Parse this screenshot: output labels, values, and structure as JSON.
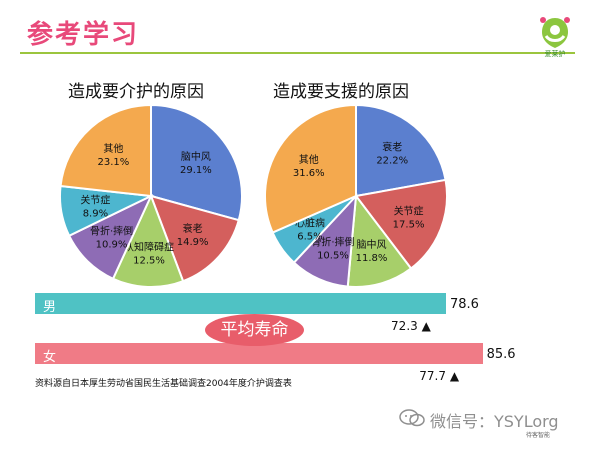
{
  "page": {
    "title": "参考学习",
    "source": "资料源自日本厚生劳动省国民生活基础调查2004年度介护调查表",
    "watermark": "微信号：YSYLorg",
    "small_note": "待客智能"
  },
  "logo": {
    "text": "爱莱护"
  },
  "chart_data": [
    {
      "type": "pie",
      "title": "造成要介护的原因",
      "slices": [
        {
          "label": "脑中风",
          "value": 29.1,
          "display": "29.1%",
          "color": "#5b7fcf"
        },
        {
          "label": "衰老",
          "value": 14.9,
          "display": "14.9%",
          "color": "#d45f5d"
        },
        {
          "label": "认知障碍症",
          "value": 12.5,
          "display": "12.5%",
          "color": "#a7cf6a"
        },
        {
          "label": "骨折·摔倒",
          "value": 10.9,
          "display": "10.9%",
          "color": "#8e6cb5"
        },
        {
          "label": "关节症",
          "value": 8.9,
          "display": "8.9%",
          "color": "#4db6cf"
        },
        {
          "label": "其他",
          "value": 23.1,
          "display": "23.1%",
          "color": "#f4a94e"
        }
      ]
    },
    {
      "type": "pie",
      "title": "造成要支援的原因",
      "slices": [
        {
          "label": "衰老",
          "value": 22.2,
          "display": "22.2%",
          "color": "#5b7fcf"
        },
        {
          "label": "关节症",
          "value": 17.5,
          "display": "17.5%",
          "color": "#d45f5d"
        },
        {
          "label": "脑中风",
          "value": 11.8,
          "display": "11.8%",
          "color": "#a7cf6a"
        },
        {
          "label": "骨折·摔倒",
          "value": 10.5,
          "display": "10.5%",
          "color": "#8e6cb5"
        },
        {
          "label": "心脏病",
          "value": 6.5,
          "display": "6.5%",
          "color": "#4db6cf"
        },
        {
          "label": "其他",
          "value": 31.6,
          "display": "31.6%",
          "color": "#f4a94e"
        }
      ]
    },
    {
      "type": "bar",
      "title": "平均寿命",
      "categories": [
        "男",
        "女"
      ],
      "values": [
        78.6,
        85.6
      ],
      "markers": [
        72.3,
        77.7
      ],
      "marker_symbol": "▲",
      "colors": [
        "#4fc2c4",
        "#f07b86"
      ]
    }
  ]
}
